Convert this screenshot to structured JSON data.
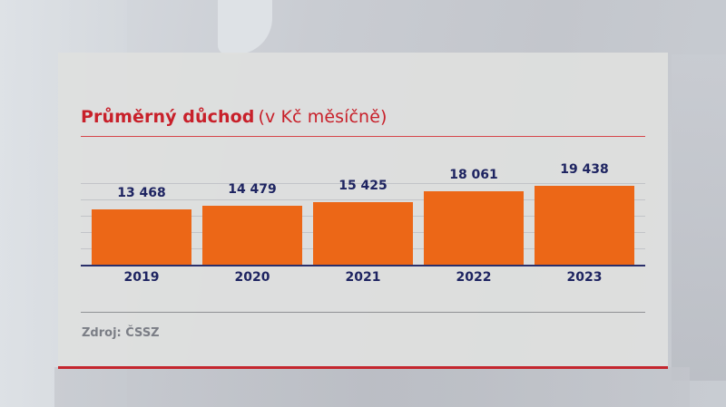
{
  "title": {
    "main": "Průměrný důchod",
    "sub": "(v Kč měsíčně)"
  },
  "source": "Zdroj: ČSSZ",
  "colors": {
    "bar": "#ec6717",
    "title": "#c8202a",
    "labels": "#1e2461",
    "accent_rule": "#c4262e"
  },
  "chart_data": {
    "type": "bar",
    "title": "Průměrný důchod (v Kč měsíčně)",
    "xlabel": "",
    "ylabel": "Kč měsíčně",
    "categories": [
      "2019",
      "2020",
      "2021",
      "2022",
      "2023"
    ],
    "values": [
      13468,
      14479,
      15425,
      18061,
      19438
    ],
    "value_labels": [
      "13 468",
      "14 479",
      "15 425",
      "18 061",
      "19 438"
    ],
    "ylim": [
      0,
      20000
    ],
    "grid": true,
    "gridlines": [
      4000,
      8000,
      12000,
      16000,
      20000
    ],
    "legend": null,
    "source": "Zdroj: ČSSZ"
  }
}
